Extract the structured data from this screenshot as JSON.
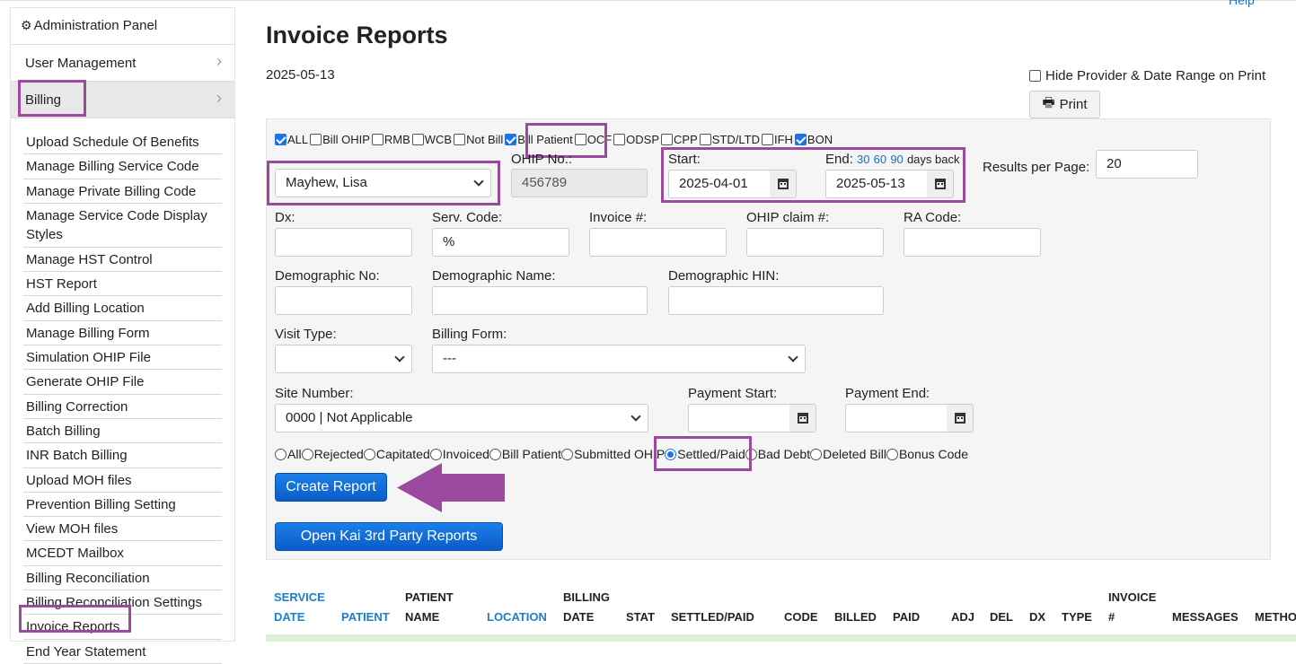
{
  "help": "Help",
  "sidebar": {
    "header": "Administration Panel",
    "user_management": "User Management",
    "billing": "Billing",
    "items": [
      "Upload Schedule Of Benefits",
      "Manage Billing Service Code",
      "Manage Private Billing Code",
      "Manage Service Code Display Styles",
      "Manage HST Control",
      "HST Report",
      "Add Billing Location",
      "Manage Billing Form",
      "Simulation OHIP File",
      "Generate OHIP File",
      "Billing Correction",
      "Batch Billing",
      "INR Batch Billing",
      "Upload MOH files",
      "Prevention Billing Setting",
      "View MOH files",
      "MCEDT Mailbox",
      "Billing Reconciliation",
      "Billing Reconciliation Settings",
      "Invoice Reports",
      "End Year Statement"
    ]
  },
  "page": {
    "title": "Invoice Reports",
    "date": "2025-05-13",
    "hide_provider_label": "Hide Provider & Date Range on Print",
    "print_label": "Print"
  },
  "filters": {
    "checkboxes": [
      {
        "label": "ALL",
        "checked": true
      },
      {
        "label": "Bill OHIP",
        "checked": false
      },
      {
        "label": "RMB",
        "checked": false
      },
      {
        "label": "WCB",
        "checked": false
      },
      {
        "label": "Not Bill",
        "checked": false
      },
      {
        "label": "Bill Patient",
        "checked": true
      },
      {
        "label": "OCF",
        "checked": false
      },
      {
        "label": "ODSP",
        "checked": false
      },
      {
        "label": "CPP",
        "checked": false
      },
      {
        "label": "STD/LTD",
        "checked": false
      },
      {
        "label": "IFH",
        "checked": false
      },
      {
        "label": "BON",
        "checked": true
      }
    ],
    "provider": "Mayhew, Lisa",
    "ohip_label": "OHIP No.:",
    "ohip_value": "456789",
    "start_label": "Start:",
    "start_value": "2025-04-01",
    "end_label": "End:",
    "end_value": "2025-05-13",
    "days_30": "30",
    "days_60": "60",
    "days_90": "90",
    "days_back": "days back",
    "results_label": "Results per Page:",
    "results_value": "20",
    "dx_label": "Dx:",
    "serv_code_label": "Serv. Code:",
    "serv_code_value": "%",
    "invoice_label": "Invoice #:",
    "ohip_claim_label": "OHIP claim #:",
    "ra_code_label": "RA Code:",
    "demo_no_label": "Demographic No:",
    "demo_name_label": "Demographic Name:",
    "demo_hin_label": "Demographic HIN:",
    "visit_type_label": "Visit Type:",
    "visit_type_value": "",
    "billing_form_label": "Billing Form:",
    "billing_form_value": "---",
    "site_number_label": "Site Number:",
    "site_number_value": "0000 | Not Applicable",
    "payment_start_label": "Payment Start:",
    "payment_end_label": "Payment End:",
    "radios": [
      {
        "label": "All",
        "checked": false
      },
      {
        "label": "Rejected",
        "checked": false
      },
      {
        "label": "Capitated",
        "checked": false
      },
      {
        "label": "Invoiced",
        "checked": false
      },
      {
        "label": "Bill Patient",
        "checked": false
      },
      {
        "label": "Submitted OHIP",
        "checked": false
      },
      {
        "label": "Settled/Paid",
        "checked": true
      },
      {
        "label": "Bad Debt",
        "checked": false
      },
      {
        "label": "Deleted Bill",
        "checked": false
      },
      {
        "label": "Bonus Code",
        "checked": false
      }
    ],
    "create_report": "Create Report",
    "open_kai": "Open Kai 3rd Party Reports"
  },
  "table": {
    "service_date_1": "SERVICE",
    "service_date_2": "DATE",
    "patient": "PATIENT",
    "patient_name_1": "PATIENT",
    "patient_name_2": "NAME",
    "location": "LOCATION",
    "billing_date_1": "BILLING",
    "billing_date_2": "DATE",
    "stat": "STAT",
    "settled_paid": "SETTLED/PAID",
    "code": "CODE",
    "billed": "BILLED",
    "paid": "PAID",
    "adj": "ADJ",
    "del": "DEL",
    "dx": "DX",
    "type": "TYPE",
    "invoice_1": "INVOICE",
    "invoice_2": "#",
    "messages": "MESSAGES",
    "method": "METHOD"
  },
  "colors": {
    "highlight": "#9b4aa0",
    "primary_button": "#0b5cc9",
    "link": "#1a7fd0"
  }
}
